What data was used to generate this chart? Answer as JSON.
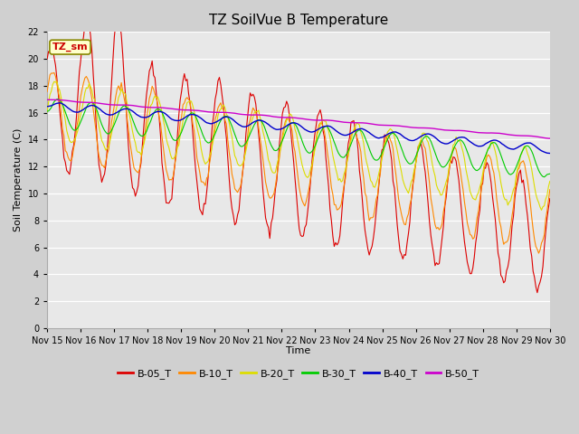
{
  "title": "TZ SoilVue B Temperature",
  "ylabel": "Soil Temperature (C)",
  "xlabel": "Time",
  "annotation": "TZ_sm",
  "ylim": [
    0,
    22
  ],
  "yticks": [
    0,
    2,
    4,
    6,
    8,
    10,
    12,
    14,
    16,
    18,
    20,
    22
  ],
  "xtick_labels": [
    "Nov 15",
    "Nov 16",
    "Nov 17",
    "Nov 18",
    "Nov 19",
    "Nov 20",
    "Nov 21",
    "Nov 22",
    "Nov 23",
    "Nov 24",
    "Nov 25",
    "Nov 26",
    "Nov 27",
    "Nov 28",
    "Nov 29",
    "Nov 30"
  ],
  "series_colors": {
    "B-05_T": "#dd0000",
    "B-10_T": "#ff8800",
    "B-20_T": "#dddd00",
    "B-30_T": "#00cc00",
    "B-40_T": "#0000cc",
    "B-50_T": "#cc00cc"
  },
  "fig_bg": "#d0d0d0",
  "plot_bg": "#e8e8e8",
  "grid_color": "#ffffff",
  "title_fontsize": 11,
  "axis_fontsize": 8,
  "tick_fontsize": 7,
  "legend_fontsize": 8
}
